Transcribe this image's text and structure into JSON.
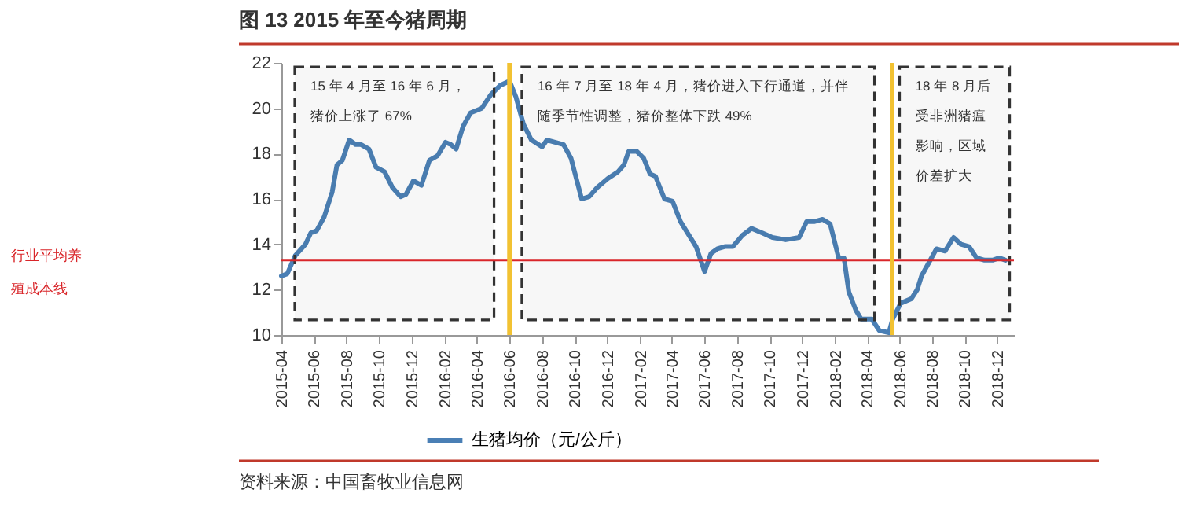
{
  "chart_data": {
    "type": "line",
    "title": "图 13   2015 年至今猪周期",
    "ylim": [
      10,
      22
    ],
    "yticks": [
      10,
      12,
      14,
      16,
      18,
      20,
      22
    ],
    "xlim": [
      "2015-04",
      "2019-01"
    ],
    "xticks": [
      "2015-04",
      "2015-06",
      "2015-08",
      "2015-10",
      "2015-12",
      "2016-02",
      "2016-04",
      "2016-06",
      "2016-08",
      "2016-10",
      "2016-12",
      "2017-02",
      "2017-04",
      "2017-06",
      "2017-08",
      "2017-10",
      "2017-12",
      "2018-02",
      "2018-04",
      "2018-06",
      "2018-08",
      "2018-10",
      "2018-12"
    ],
    "x": [
      "2015-04-01",
      "2015-04-12",
      "2015-04-27",
      "2015-05-16",
      "2015-05-26",
      "2015-06-06",
      "2015-06-20",
      "2015-07-05",
      "2015-07-14",
      "2015-07-24",
      "2015-08-06",
      "2015-08-18",
      "2015-08-28",
      "2015-09-12",
      "2015-09-25",
      "2015-10-11",
      "2015-10-26",
      "2015-11-10",
      "2015-11-20",
      "2015-12-04",
      "2015-12-19",
      "2016-01-03",
      "2016-01-18",
      "2016-02-02",
      "2016-02-12",
      "2016-02-22",
      "2016-03-06",
      "2016-03-20",
      "2016-04-10",
      "2016-04-27",
      "2016-05-14",
      "2016-06-01",
      "2016-06-13",
      "2016-06-27",
      "2016-07-12",
      "2016-08-01",
      "2016-08-10",
      "2016-08-25",
      "2016-09-10",
      "2016-09-24",
      "2016-10-14",
      "2016-10-28",
      "2016-11-12",
      "2016-12-02",
      "2016-12-21",
      "2017-01-01",
      "2017-01-10",
      "2017-01-25",
      "2017-02-07",
      "2017-02-19",
      "2017-03-01",
      "2017-03-18",
      "2017-04-02",
      "2017-04-17",
      "2017-05-16",
      "2017-06-01",
      "2017-06-13",
      "2017-06-25",
      "2017-07-09",
      "2017-07-24",
      "2017-08-11",
      "2017-08-28",
      "2017-09-17",
      "2017-10-06",
      "2017-10-31",
      "2017-11-25",
      "2017-12-09",
      "2017-12-23",
      "2018-01-08",
      "2018-01-22",
      "2018-02-07",
      "2018-02-17",
      "2018-02-26",
      "2018-03-11",
      "2018-03-21",
      "2018-04-10",
      "2018-04-24",
      "2018-05-12",
      "2018-05-19",
      "2018-06-03",
      "2018-06-23",
      "2018-07-04",
      "2018-07-12",
      "2018-07-26",
      "2018-08-09",
      "2018-08-25",
      "2018-09-10",
      "2018-09-24",
      "2018-10-09",
      "2018-10-23",
      "2018-11-07",
      "2018-11-22",
      "2018-12-05",
      "2018-12-16"
    ],
    "series": [
      {
        "name": "生猪均价（元/公斤）",
        "color": "#4a7fb5",
        "values": [
          12.6,
          12.7,
          13.5,
          14.0,
          14.5,
          14.6,
          15.2,
          16.3,
          17.5,
          17.7,
          18.6,
          18.4,
          18.4,
          18.2,
          17.4,
          17.2,
          16.5,
          16.1,
          16.2,
          16.8,
          16.6,
          17.7,
          17.9,
          18.5,
          18.4,
          18.2,
          19.2,
          19.8,
          20.0,
          20.6,
          21.0,
          21.2,
          20.5,
          19.3,
          18.6,
          18.3,
          18.6,
          18.5,
          18.4,
          17.8,
          16.0,
          16.1,
          16.5,
          16.9,
          17.2,
          17.5,
          18.1,
          18.1,
          17.8,
          17.1,
          17.0,
          16.0,
          15.9,
          15.0,
          13.9,
          12.8,
          13.6,
          13.8,
          13.9,
          13.9,
          14.4,
          14.7,
          14.5,
          14.3,
          14.2,
          14.3,
          15.0,
          15.0,
          15.1,
          14.9,
          13.4,
          13.4,
          11.9,
          11.1,
          10.7,
          10.7,
          10.2,
          10.1,
          10.7,
          11.4,
          11.6,
          12.0,
          12.6,
          13.2,
          13.8,
          13.7,
          14.3,
          14.0,
          13.9,
          13.4,
          13.3,
          13.3,
          13.4,
          13.3
        ]
      }
    ],
    "ref_lines": [
      {
        "axis": "y",
        "value": 13.3,
        "label": "行业平均养殖成本线",
        "color": "#d9262a"
      },
      {
        "axis": "x",
        "value": "2016-06-01",
        "color": "#f2c232"
      },
      {
        "axis": "x",
        "value": "2018-05-18",
        "color": "#f2c232"
      }
    ],
    "bands": [
      {
        "axis": "x",
        "from": "2015-04-26",
        "to": "2016-05-03",
        "label": "15 年 4 月至 16 年 6 月，猪价上涨了 67%",
        "color": "#333333"
      },
      {
        "axis": "x",
        "from": "2016-06-24",
        "to": "2018-04-15",
        "label": "16 年 7 月至 18 年 4 月，猪价进入下行通道，并伴随季节性调整，猪价整体下跌 49%",
        "color": "#333333"
      },
      {
        "axis": "x",
        "from": "2018-06-01",
        "to": "2018-12-24",
        "label": "18 年 8 月后受非洲猪瘟影响，区域价差扩大",
        "color": "#333333"
      }
    ],
    "annotations": [
      "资料来源：中国畜牧业信息网"
    ],
    "legend": "bottom",
    "grid": false,
    "line_style": "solid",
    "marker": "none"
  }
}
